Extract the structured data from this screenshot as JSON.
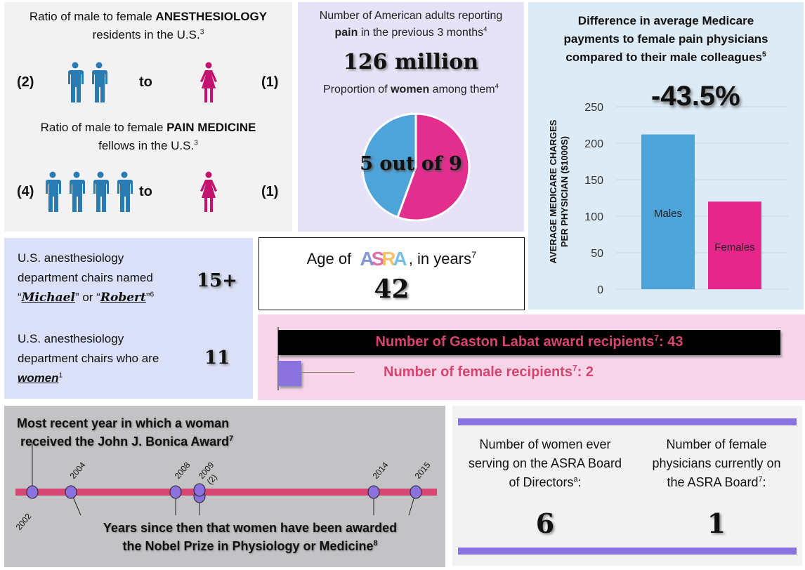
{
  "ratio_panel": {
    "anesthesiology": {
      "title_prefix": "Ratio of male to female ",
      "title_bold": "ANESTHESIOLOGY",
      "title_line2": "residents in the U.S.",
      "ref": "3",
      "male_count_label": "(2)",
      "connector": "to",
      "female_count_label": "(1)",
      "male_icons": 2,
      "female_icons": 1
    },
    "pain_medicine": {
      "title_prefix": "Ratio of male to female ",
      "title_bold": "PAIN MEDICINE",
      "title_line2": "fellows in the U.S.",
      "ref": "3",
      "male_count_label": "(4)",
      "connector": "to",
      "female_count_label": "(1)",
      "male_icons": 4,
      "female_icons": 1
    },
    "colors": {
      "male": "#2a7ab4",
      "female": "#c2136f"
    }
  },
  "pain_panel": {
    "line1": "Number of American adults reporting",
    "line2_bold": "pain",
    "line2_rest": " in the previous 3 months",
    "ref1": "4",
    "big_value": "126 million",
    "sub_prefix": "Proportion of ",
    "sub_bold": "women",
    "sub_suffix": " among them",
    "ref2": "4",
    "pie_label": "5 out of 9"
  },
  "medicare_panel": {
    "title_lines": [
      "Difference in average Medicare",
      "payments to female pain physicians",
      "compared to their male colleagues"
    ],
    "ref": "5",
    "difference": "-43.5%"
  },
  "chairs_panel": {
    "item1_line1": "U.S. anesthesiology",
    "item1_line2": "department chairs named",
    "name1": "Michael",
    "or_text": " or ",
    "name2": "Robert",
    "ref1": "6",
    "value1": "15+",
    "item2_line1": "U.S. anesthesiology",
    "item2_line2": "department chairs who are",
    "item2_word": "women",
    "ref2": "1",
    "value2": "11"
  },
  "age_panel": {
    "prefix": "Age of",
    "logo_letters": [
      "A",
      "S",
      "R",
      "A"
    ],
    "logo_colors": [
      "#6f86cf",
      "#d9579b",
      "#f3b94a",
      "#5fb4e4"
    ],
    "suffix": ", in years",
    "ref": "7",
    "value": "42"
  },
  "labat_panel": {
    "total_label": "Number of Gaston Labat award recipients",
    "total_ref": "7",
    "total_value": "43",
    "female_label": "Number of female recipients",
    "female_ref": "7",
    "female_value": "2",
    "total": 43,
    "female": 2
  },
  "timeline_panel": {
    "title_line1": "Most recent year in which a woman",
    "title_line2": "received the John J. Bonica Award",
    "title_ref": "7",
    "footer_line1": "Years since then that women have been awarded",
    "footer_line2": "the Nobel Prize in Physiology or Medicine",
    "footer_ref": "8",
    "events": [
      {
        "year": "2002",
        "note": ""
      },
      {
        "year": "2004",
        "note": ""
      },
      {
        "year": "2008",
        "note": ""
      },
      {
        "year": "2009",
        "note": "(2)"
      },
      {
        "year": "2014",
        "note": ""
      },
      {
        "year": "2015",
        "note": ""
      }
    ]
  },
  "board_panel": {
    "left_lines": [
      "Number of women ever",
      "serving on the ASRA Board",
      "of Directors"
    ],
    "left_ref": "a",
    "left_value": "6",
    "right_lines": [
      "Number of female",
      "physicians currently on",
      "the ASRA Board"
    ],
    "right_ref": "7",
    "right_value": "1"
  },
  "chart_data": [
    {
      "type": "pie",
      "title": "Proportion of women among them",
      "categories": [
        "Women",
        "Men"
      ],
      "values": [
        5,
        4
      ],
      "colors": [
        "#e22f8e",
        "#4ea4d9"
      ],
      "annotation": "5 out of 9"
    },
    {
      "type": "bar",
      "title": "Difference in average Medicare payments to female pain physicians compared to their male colleagues",
      "categories": [
        "Males",
        "Females"
      ],
      "values": [
        212,
        120
      ],
      "colors": [
        "#4ea4d9",
        "#e7268c"
      ],
      "xlabel": "",
      "ylabel": "AVERAGE MEDICARE CHARGES PER PHYSICIAN ($1000S)",
      "ylim": [
        0,
        250
      ],
      "yticks": [
        0,
        50,
        100,
        150,
        200,
        250
      ],
      "grid": true,
      "annotation": "-43.5%"
    }
  ]
}
